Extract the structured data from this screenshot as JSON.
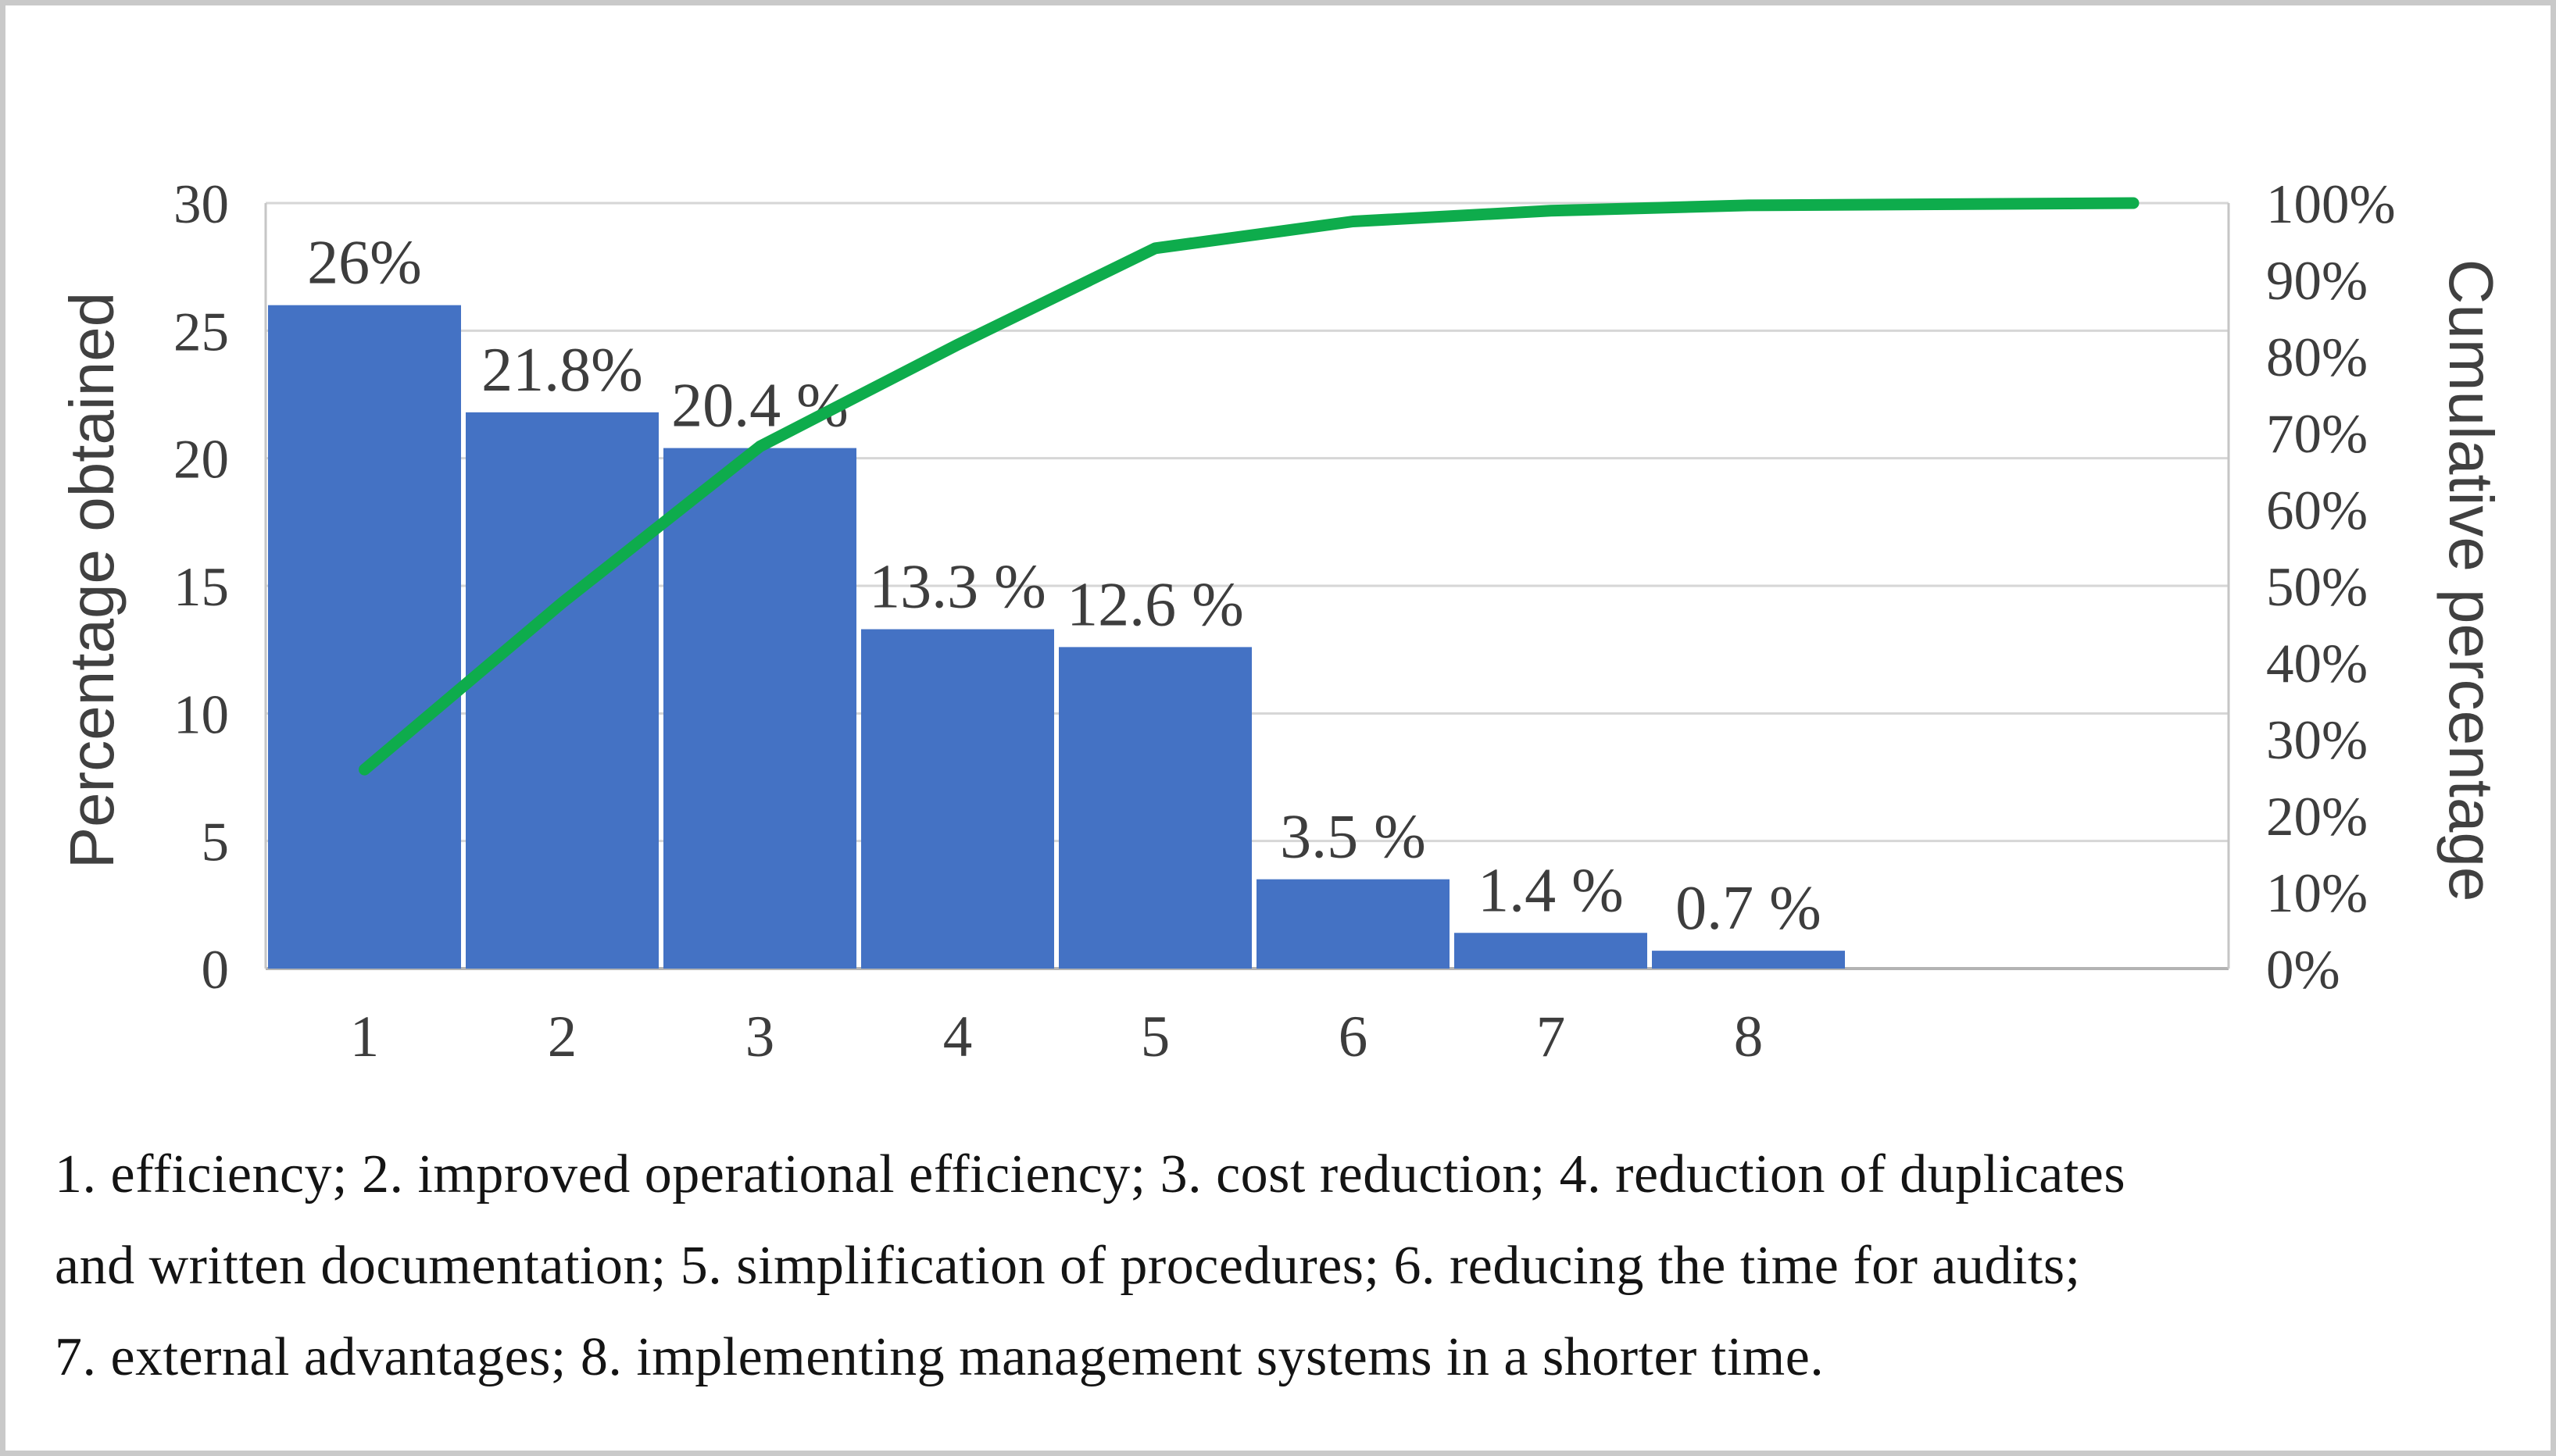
{
  "chart_data": {
    "type": "bar",
    "subtype": "pareto",
    "categories": [
      "1",
      "2",
      "3",
      "4",
      "5",
      "6",
      "7",
      "8"
    ],
    "series": [
      {
        "name": "Percentage obtained",
        "type": "bar",
        "color": "#4472c4",
        "values": [
          26,
          21.8,
          20.4,
          13.3,
          12.6,
          3.5,
          1.4,
          0.7
        ],
        "data_labels": [
          "26%",
          "21.8%",
          "20.4 %",
          "13.3 %",
          "12.6 %",
          "3.5 %",
          "1.4 %",
          "0.7 %"
        ]
      },
      {
        "name": "Cumulative percentage",
        "type": "line",
        "color": "#0eac4c",
        "values": [
          26,
          47.8,
          68.2,
          81.5,
          94.1,
          97.6,
          99.0,
          99.7
        ],
        "end_value": 100
      }
    ],
    "ylabel": "Percentage obtained",
    "y2label": "Cumulative percentage",
    "ylim": [
      0,
      30
    ],
    "y2lim": [
      0,
      100
    ],
    "left_axis_ticks": [
      "30",
      "25",
      "20",
      "15",
      "10",
      "5",
      "0"
    ],
    "right_axis_ticks": [
      "100%",
      "90%",
      "80%",
      "70%",
      "60%",
      "50%",
      "40%",
      "30%",
      "20%",
      "10%",
      "0%"
    ],
    "grid": true,
    "legend": "none",
    "colors": {
      "bar": "#4472c4",
      "line": "#0eac4c",
      "gridline": "#d6d6d6",
      "plot_border": "#c6c6c6",
      "baseline": "#b3b3b3",
      "tick_text": "#3d3d3d",
      "data_label_text": "#3d3d3d",
      "axis_title_text": "#404040",
      "page_border": "#c9c9c9"
    }
  },
  "caption": {
    "lines": [
      "1. efficiency; 2. improved operational efficiency; 3. cost reduction; 4. reduction of duplicates",
      "and written documentation; 5. simplification of procedures; 6. reducing the time for audits;",
      "7. external advantages; 8. implementing management systems in a shorter time."
    ]
  }
}
